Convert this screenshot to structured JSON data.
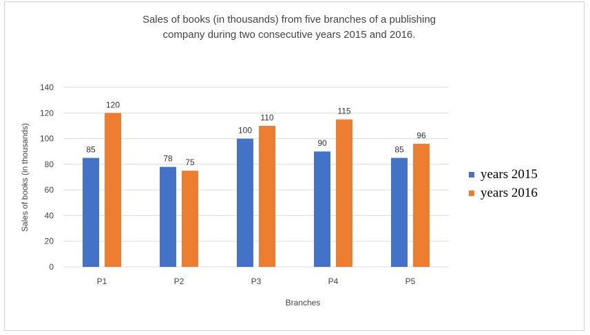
{
  "chart_data": {
    "type": "bar",
    "title_lines": [
      "Sales of books (in thousands) from five branches of a publishing",
      "company during two consecutive years 2015 and 2016."
    ],
    "xlabel": "Branches",
    "ylabel": "Sales of books (in thousands)",
    "categories": [
      "P1",
      "P2",
      "P3",
      "P4",
      "P5"
    ],
    "ylim": [
      0,
      140
    ],
    "yticks": [
      0,
      20,
      40,
      60,
      80,
      100,
      120,
      140
    ],
    "grid": true,
    "legend_position": "right",
    "series": [
      {
        "name": "years 2015",
        "color": "#4472C4",
        "values": [
          85,
          78,
          100,
          90,
          85
        ]
      },
      {
        "name": "years 2016",
        "color": "#ED7D31",
        "values": [
          120,
          75,
          110,
          115,
          96
        ]
      }
    ]
  }
}
